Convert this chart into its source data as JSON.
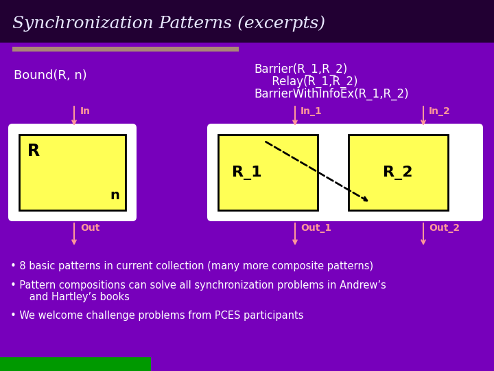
{
  "title": "Synchronization Patterns (excerpts)",
  "bg_color": "#7700bb",
  "title_bg_color": "#220033",
  "title_color": "#e8e8ff",
  "label_color": "#ffffff",
  "arrow_color": "#ff9999",
  "box_outer_color": "#ffffff",
  "box_inner_color": "#ffff55",
  "box_border_color": "#000000",
  "dashed_color": "#000000",
  "bullet_color": "#ffffff",
  "bound_label": "Bound(R, n)",
  "barrier_line1": "Barrier(R_1,R_2)",
  "barrier_line2": "     Relay(R_1,R_2)",
  "barrier_line3": "BarrierWithInfoEx(R_1,R_2)",
  "r_text": "R",
  "n_text": "n",
  "r1_text": "R_1",
  "r2_text": "R_2",
  "in_text": "In",
  "out_text": "Out",
  "in1_text": "In_1",
  "in2_text": "In_2",
  "out1_text": "Out_1",
  "out2_text": "Out_2",
  "bullet1": "• 8 basic patterns in current collection (many more composite patterns)",
  "bullet2": "• Pattern compositions can solve all synchronization problems in Andrew’s",
  "bullet2b": "      and Hartley’s books",
  "bullet3": "• We welcome challenge problems from PCES participants",
  "separator_color": "#aa8877",
  "green_bar_color": "#009900"
}
